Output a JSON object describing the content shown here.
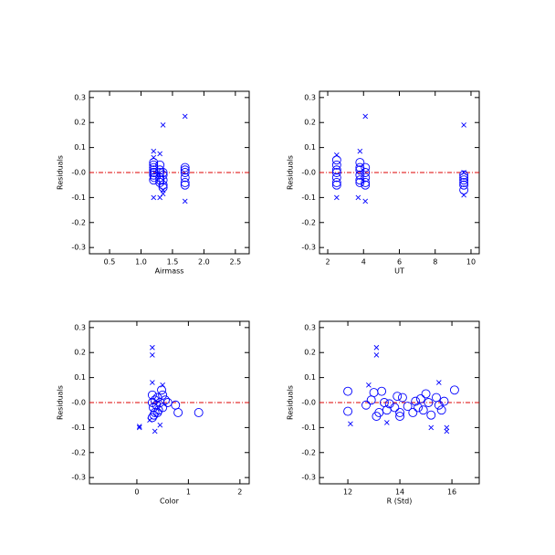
{
  "chart_data": [
    {
      "type": "scatter",
      "xlabel": "Airmass",
      "ylabel": "Residuals",
      "xlim": [
        0.18,
        2.72
      ],
      "ylim": [
        -0.325,
        0.325
      ],
      "xticks": [
        0.5,
        {
          "value": 1,
          "label": "1.0"
        },
        1.5,
        {
          "value": 2,
          "label": "2.0"
        },
        2.5
      ],
      "yticks": [
        0.3,
        0.2,
        0.1,
        {
          "value": 0,
          "label": "-0.0"
        },
        -0.1,
        -0.2,
        -0.3
      ],
      "hline": 0,
      "hline_color": "#dd0000",
      "series": [
        {
          "marker": "circle",
          "color": "#0000ff",
          "x": [
            1.2,
            1.2,
            1.2,
            1.2,
            1.2,
            1.2,
            1.2,
            1.21,
            1.21,
            1.3,
            1.3,
            1.3,
            1.3,
            1.3,
            1.3,
            1.35,
            1.35,
            1.35,
            1.35,
            1.35,
            1.7,
            1.7,
            1.7,
            1.7,
            1.7,
            1.7
          ],
          "values": [
            0.04,
            0.03,
            0.02,
            0.01,
            0.0,
            -0.01,
            -0.03,
            -0.02,
            0.0,
            0.03,
            0.01,
            0.0,
            -0.02,
            -0.03,
            -0.04,
            0.0,
            -0.01,
            -0.03,
            -0.05,
            -0.06,
            0.02,
            0.01,
            0.0,
            -0.02,
            -0.04,
            -0.05
          ]
        },
        {
          "marker": "cross",
          "color": "#0000ff",
          "x": [
            1.2,
            1.2,
            1.35,
            1.7,
            1.7,
            1.3,
            1.35,
            1.3,
            1.2,
            1.35
          ],
          "values": [
            0.085,
            -0.1,
            0.19,
            0.225,
            -0.115,
            -0.1,
            -0.085,
            0.075,
            0.06,
            -0.07
          ]
        }
      ]
    },
    {
      "type": "scatter",
      "xlabel": "UT",
      "ylabel": "Residuals",
      "xlim": [
        1.54,
        10.46
      ],
      "ylim": [
        -0.325,
        0.325
      ],
      "xticks": [
        2,
        4,
        6,
        8,
        10
      ],
      "yticks": [
        0.3,
        0.2,
        0.1,
        {
          "value": 0,
          "label": "-0.0"
        },
        -0.1,
        -0.2,
        -0.3
      ],
      "hline": 0,
      "hline_color": "#dd0000",
      "series": [
        {
          "marker": "circle",
          "color": "#0000ff",
          "x": [
            2.5,
            2.5,
            2.5,
            2.5,
            2.5,
            2.5,
            2.5,
            3.8,
            3.8,
            3.8,
            3.8,
            3.8,
            3.8,
            4.1,
            4.1,
            4.1,
            4.1,
            4.1,
            9.6,
            9.6,
            9.6,
            9.6,
            9.6,
            9.6
          ],
          "values": [
            0.05,
            0.03,
            0.01,
            0.0,
            -0.02,
            -0.04,
            -0.05,
            0.04,
            0.02,
            0.01,
            -0.01,
            -0.03,
            -0.04,
            0.02,
            0.0,
            -0.02,
            -0.04,
            -0.05,
            -0.01,
            -0.02,
            -0.03,
            -0.04,
            -0.05,
            -0.07
          ]
        },
        {
          "marker": "cross",
          "color": "#0000ff",
          "x": [
            4.1,
            9.6,
            2.5,
            3.7,
            4.1,
            3.8,
            2.5,
            9.6,
            9.6
          ],
          "values": [
            0.225,
            0.19,
            -0.1,
            -0.1,
            -0.115,
            0.085,
            0.07,
            -0.09,
            0.0
          ]
        }
      ]
    },
    {
      "type": "scatter",
      "xlabel": "Color",
      "ylabel": "Residuals",
      "xlim": [
        -0.92,
        2.18
      ],
      "ylim": [
        -0.325,
        0.325
      ],
      "xticks": [
        0,
        1,
        2
      ],
      "yticks": [
        0.3,
        0.2,
        0.1,
        {
          "value": 0,
          "label": "-0.0"
        },
        -0.1,
        -0.2,
        -0.3
      ],
      "hline": 0,
      "hline_color": "#dd0000",
      "series": [
        {
          "marker": "circle",
          "color": "#0000ff",
          "x": [
            0.3,
            0.3,
            0.32,
            0.35,
            0.35,
            0.38,
            0.4,
            0.42,
            0.45,
            0.5,
            0.5,
            0.55,
            0.3,
            0.33,
            0.4,
            0.48,
            0.6,
            0.75,
            0.8,
            1.2
          ],
          "values": [
            0.03,
            0.0,
            -0.02,
            -0.04,
            0.01,
            -0.01,
            0.02,
            -0.03,
            0.0,
            0.03,
            -0.02,
            0.01,
            -0.06,
            -0.05,
            -0.04,
            0.05,
            0.0,
            -0.01,
            -0.04,
            -0.04
          ]
        },
        {
          "marker": "cross",
          "color": "#0000ff",
          "x": [
            0.3,
            0.3,
            0.05,
            0.3,
            0.35,
            0.5,
            0.45,
            0.05,
            0.25
          ],
          "values": [
            0.22,
            0.19,
            -0.1,
            0.08,
            -0.115,
            0.07,
            -0.09,
            -0.095,
            -0.07
          ]
        }
      ]
    },
    {
      "type": "scatter",
      "xlabel": "R (Std)",
      "ylabel": "Residuals",
      "xlim": [
        10.91,
        17.05
      ],
      "ylim": [
        -0.325,
        0.325
      ],
      "xticks": [
        12,
        14,
        16
      ],
      "yticks": [
        0.3,
        0.2,
        0.1,
        {
          "value": 0,
          "label": "-0.0"
        },
        -0.1,
        -0.2,
        -0.3
      ],
      "hline": 0,
      "hline_color": "#dd0000",
      "series": [
        {
          "marker": "circle",
          "color": "#0000ff",
          "x": [
            12.0,
            12.0,
            12.7,
            12.9,
            13.0,
            13.2,
            13.3,
            13.4,
            13.5,
            13.6,
            13.8,
            13.9,
            14.0,
            14.1,
            14.3,
            14.5,
            14.6,
            14.7,
            14.8,
            14.9,
            15.0,
            15.1,
            15.2,
            15.4,
            15.5,
            15.6,
            15.7,
            16.1,
            13.1,
            14.0
          ],
          "values": [
            0.045,
            -0.035,
            -0.01,
            0.01,
            0.04,
            -0.04,
            0.045,
            0.0,
            -0.03,
            -0.005,
            -0.02,
            0.025,
            -0.04,
            0.02,
            -0.015,
            -0.04,
            0.005,
            -0.02,
            0.015,
            -0.03,
            0.035,
            0.0,
            -0.05,
            0.02,
            -0.01,
            -0.03,
            0.005,
            0.05,
            -0.055,
            -0.055
          ]
        },
        {
          "marker": "cross",
          "color": "#0000ff",
          "x": [
            13.1,
            13.1,
            12.1,
            15.5,
            15.8,
            15.8,
            13.5,
            12.8,
            15.2
          ],
          "values": [
            0.22,
            0.19,
            -0.085,
            0.08,
            -0.1,
            -0.115,
            -0.08,
            0.07,
            -0.1
          ]
        }
      ]
    }
  ]
}
